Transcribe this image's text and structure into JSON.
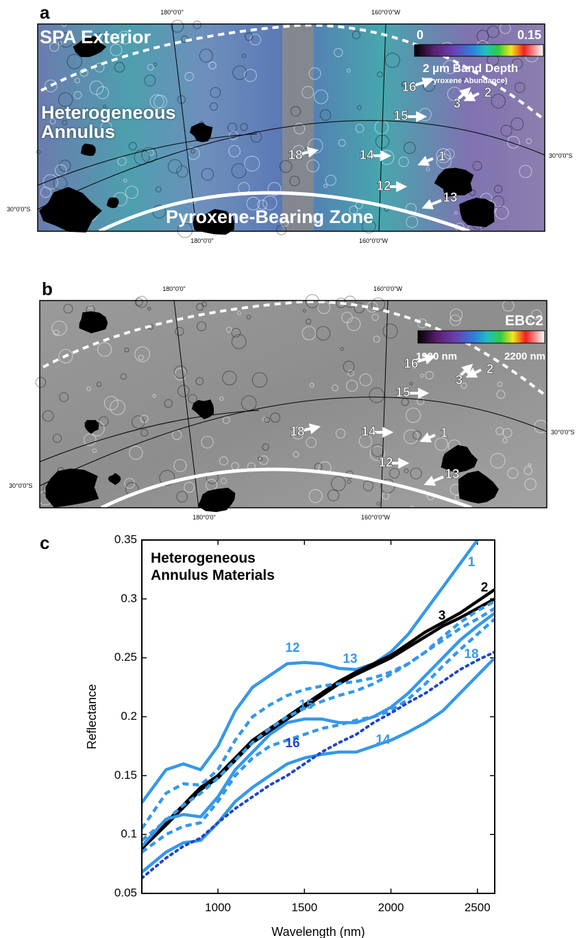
{
  "panels": [
    {
      "label": "a",
      "regions": [
        "SPA Exterior",
        "Heterogeneous Annulus",
        "Pyroxene-Bearing Zone"
      ],
      "colorbar": {
        "min": "0",
        "max": "0.15",
        "title": "2 µm Band Depth",
        "subtitle": "(Pyroxene Abundance)"
      },
      "graticule": {
        "top": [
          "180°0'0\"",
          "160°0'0\"W"
        ],
        "bottom": [
          "180°0'0\"",
          "160°0'0\"W"
        ],
        "left": "30°0'0\"S",
        "right": "30°0'0\"S"
      },
      "sites": [
        "16",
        "3",
        "2",
        "15",
        "14",
        "1",
        "18",
        "12",
        "13"
      ]
    },
    {
      "label": "b",
      "colorbar": {
        "title": "EBC2",
        "min": "1900 nm",
        "max": "2200 nm"
      },
      "graticule": {
        "top": [
          "180°0'0\"",
          "160°0'0\"W"
        ],
        "bottom": [
          "180°0'0\"",
          "160°0'0\"W"
        ],
        "left": "30°0'0\"S",
        "right": "30°0'0\"S"
      },
      "sites": [
        "16",
        "3",
        "2",
        "15",
        "14",
        "1",
        "18",
        "12",
        "13"
      ]
    }
  ],
  "chart_label": "c",
  "chart_data": {
    "type": "line",
    "title": "Heterogeneous Annulus Materials",
    "x_label": "Wavelength (nm)",
    "y_label": "Reflectance",
    "xlim": [
      560,
      2600
    ],
    "ylim": [
      0.05,
      0.35
    ],
    "xticks": [
      1000,
      1500,
      2000,
      2500
    ],
    "yticks": [
      0.05,
      0.1,
      0.15,
      0.2,
      0.25,
      0.3,
      0.35
    ],
    "x": [
      560,
      700,
      800,
      900,
      1000,
      1100,
      1200,
      1300,
      1400,
      1500,
      1600,
      1700,
      1800,
      1900,
      2000,
      2100,
      2200,
      2300,
      2400,
      2500,
      2600
    ],
    "series": [
      {
        "name": "1",
        "color": "#3598ea",
        "dash": "solid",
        "values": [
          0.127,
          0.155,
          0.16,
          0.155,
          0.175,
          0.205,
          0.225,
          0.235,
          0.245,
          0.246,
          0.245,
          0.241,
          0.24,
          0.245,
          0.255,
          0.27,
          0.29,
          0.31,
          0.33,
          0.35,
          null
        ]
      },
      {
        "name": "2",
        "color": "#000000",
        "dash": "solid",
        "values": [
          0.09,
          0.11,
          0.125,
          0.14,
          0.15,
          0.165,
          0.18,
          0.19,
          0.2,
          0.21,
          0.22,
          0.23,
          0.238,
          0.245,
          0.252,
          0.262,
          0.272,
          0.28,
          0.288,
          0.298,
          0.308
        ]
      },
      {
        "name": "3",
        "color": "#000000",
        "dash": "solid",
        "values": [
          0.088,
          0.108,
          0.123,
          0.138,
          0.148,
          0.163,
          0.178,
          0.188,
          0.198,
          0.208,
          0.218,
          0.228,
          0.236,
          0.243,
          0.25,
          0.259,
          0.268,
          0.277,
          0.284,
          0.292,
          0.3
        ]
      },
      {
        "name": "12",
        "color": "#3598ea",
        "dash": "dashed",
        "values": [
          0.105,
          0.135,
          0.143,
          0.142,
          0.155,
          0.18,
          0.2,
          0.21,
          0.218,
          0.223,
          0.226,
          0.228,
          0.23,
          0.233,
          0.238,
          0.245,
          0.255,
          0.268,
          0.28,
          0.29,
          0.298
        ]
      },
      {
        "name": "13",
        "color": "#3598ea",
        "dash": "dashed",
        "values": [
          0.095,
          0.112,
          0.125,
          0.135,
          0.148,
          0.163,
          0.178,
          0.19,
          0.2,
          0.207,
          0.213,
          0.218,
          0.222,
          0.228,
          0.236,
          0.245,
          0.255,
          0.265,
          0.275,
          0.283,
          0.292
        ]
      },
      {
        "name": "14",
        "color": "#3598ea",
        "dash": "solid",
        "values": [
          0.068,
          0.085,
          0.093,
          0.095,
          0.11,
          0.128,
          0.14,
          0.15,
          0.16,
          0.165,
          0.168,
          0.17,
          0.17,
          0.175,
          0.18,
          0.187,
          0.195,
          0.205,
          0.22,
          0.235,
          0.25
        ]
      },
      {
        "name": "15",
        "color": "#3598ea",
        "dash": "dashed",
        "values": [
          0.085,
          0.1,
          0.107,
          0.11,
          0.128,
          0.15,
          0.165,
          0.175,
          0.18,
          0.185,
          0.19,
          0.193,
          0.197,
          0.2,
          0.205,
          0.215,
          0.228,
          0.243,
          0.257,
          0.27,
          0.283
        ]
      },
      {
        "name": "16",
        "color": "#1f44cc",
        "dash": "dotted",
        "values": [
          0.063,
          0.08,
          0.09,
          0.097,
          0.11,
          0.122,
          0.132,
          0.142,
          0.15,
          0.16,
          0.17,
          0.178,
          0.185,
          0.195,
          0.203,
          0.212,
          0.22,
          0.23,
          0.24,
          0.248,
          0.255
        ]
      },
      {
        "name": "18",
        "color": "#3598ea",
        "dash": "solid",
        "values": [
          0.09,
          0.113,
          0.117,
          0.115,
          0.132,
          0.155,
          0.17,
          0.185,
          0.195,
          0.198,
          0.198,
          0.195,
          0.195,
          0.2,
          0.208,
          0.22,
          0.235,
          0.25,
          0.265,
          0.277,
          0.288
        ]
      }
    ]
  }
}
